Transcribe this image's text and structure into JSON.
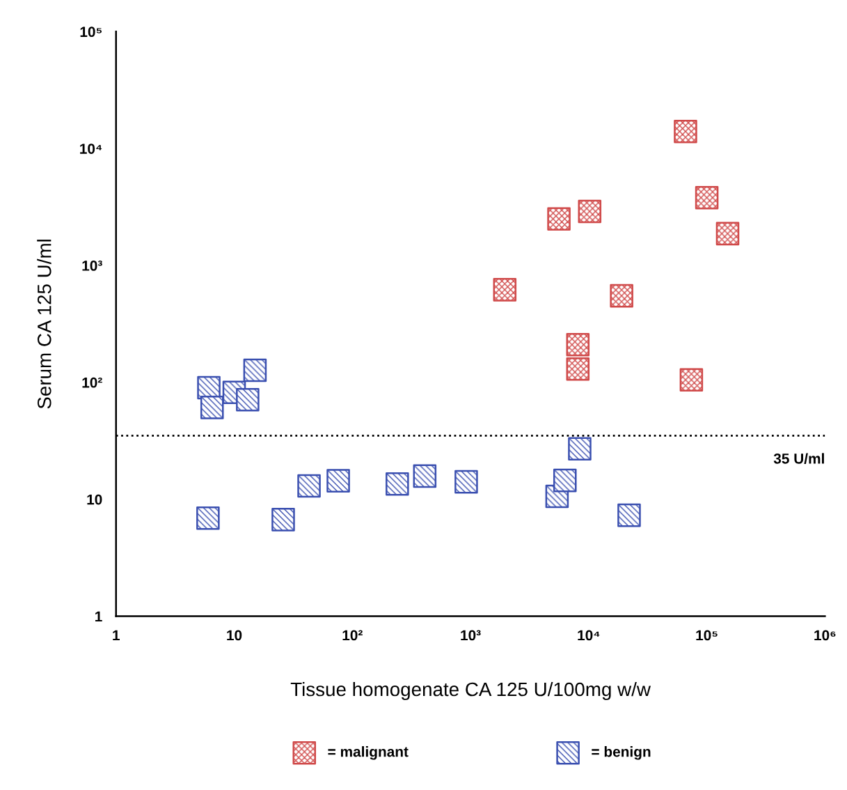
{
  "chart_data": {
    "type": "scatter",
    "xlabel": "Tissue homogenate CA 125 U/100mg w/w",
    "ylabel": "Serum CA 125 U/ml",
    "log": "xy",
    "xlim": [
      1,
      1000000
    ],
    "ylim": [
      1,
      100000
    ],
    "xticks": [
      1,
      10,
      {
        "value": 100,
        "label": "10²"
      },
      {
        "value": 1000,
        "label": "10³"
      },
      {
        "value": 10000,
        "label": "10⁴"
      },
      {
        "value": 100000,
        "label": "10⁵"
      },
      {
        "value": 1000000,
        "label": "10⁶"
      }
    ],
    "yticks": [
      1,
      10,
      {
        "value": 100,
        "label": "10²"
      },
      {
        "value": 1000,
        "label": "10³"
      },
      {
        "value": 10000,
        "label": "10⁴"
      },
      {
        "value": 100000,
        "label": "10⁵"
      }
    ],
    "marker": "square",
    "grid": false,
    "legend": "bottom",
    "ref_lines": [
      {
        "axis": "y",
        "value": 35,
        "label": "35 U/ml",
        "color": "#000000",
        "line_style": "dotted"
      }
    ],
    "series": [
      {
        "name": "= malignant",
        "color": "#d04a4a",
        "x": [
          66000,
          100000,
          150000,
          5600,
          10200,
          1950,
          19000,
          8100,
          8100,
          74000
        ],
        "values": [
          14000,
          3800,
          1870,
          2500,
          2900,
          620,
          550,
          210,
          130,
          105
        ]
      },
      {
        "name": "= benign",
        "color": "#3a4fb0",
        "x": [
          6.1,
          6.5,
          10,
          13,
          15,
          6,
          26,
          43,
          76,
          240,
          410,
          920,
          5400,
          6300,
          8400,
          22000
        ],
        "values": [
          90,
          61,
          82,
          71,
          127,
          6.9,
          6.7,
          13,
          14.4,
          13.5,
          15.8,
          14.1,
          10.6,
          14.5,
          27,
          7.3
        ]
      }
    ]
  }
}
